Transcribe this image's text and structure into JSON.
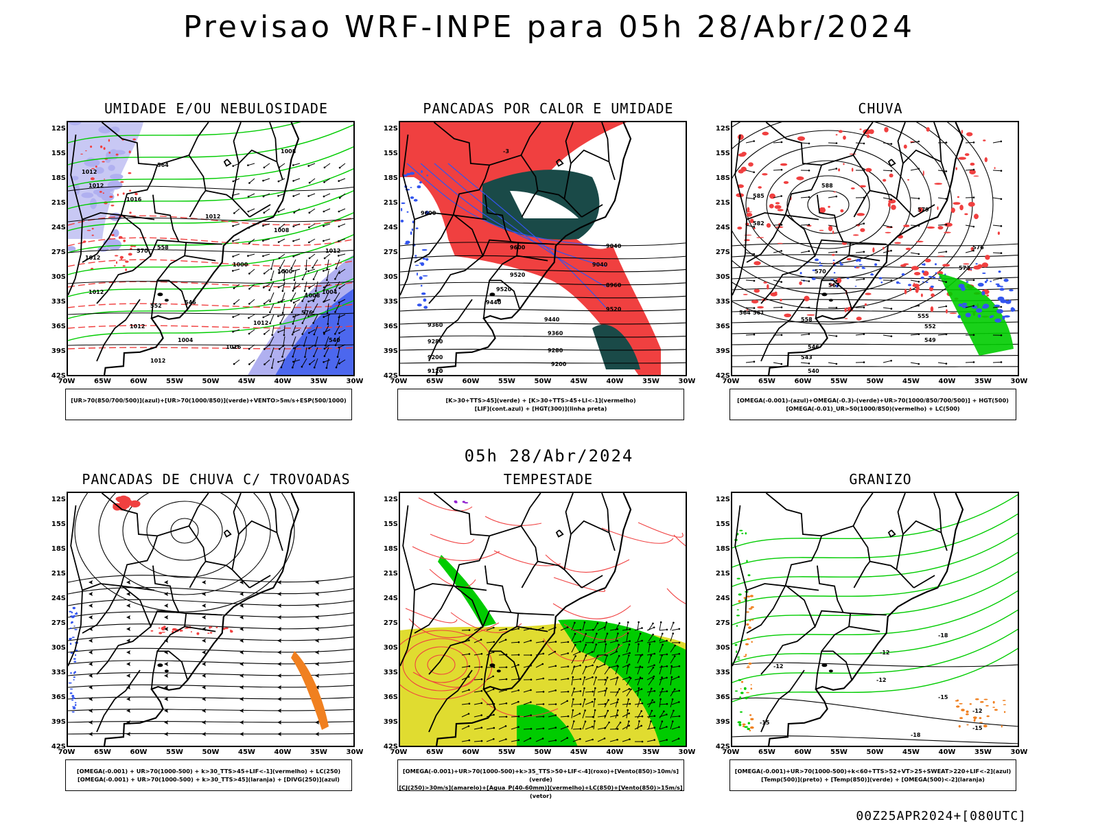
{
  "header": {
    "title": "Previsao WRF-INPE  para 05h 28/Abr/2024",
    "mid_time": "05h 28/Abr/2024",
    "footer": "00Z25APR2024+[080UTC]"
  },
  "axes": {
    "lat_labels": [
      "12S",
      "15S",
      "18S",
      "21S",
      "24S",
      "27S",
      "30S",
      "33S",
      "36S",
      "39S",
      "42S"
    ],
    "lon_labels": [
      "70W",
      "65W",
      "60W",
      "55W",
      "50W",
      "45W",
      "40W",
      "35W",
      "30W"
    ]
  },
  "panels": [
    {
      "id": "umidade",
      "title": "UMIDADE E/OU NEBULOSIDADE",
      "legend_lines": [
        "[UR>70(850/700/500)](azul)+[UR>70(1000/850)](verde)+VENTO>5m/s+ESP(500/1000)"
      ],
      "labels": [
        "1012",
        "1012",
        "1016",
        "1012",
        "1008",
        "1012",
        "1012",
        "1012",
        "1016",
        "1012",
        "1004",
        "1012",
        "1000",
        "1008",
        "1004",
        "1012",
        "1008",
        "1000",
        "576",
        "570",
        "564",
        "558",
        "552",
        "546",
        "540"
      ]
    },
    {
      "id": "pancadas-calor",
      "title": "PANCADAS POR CALOR E UMIDADE",
      "legend_lines": [
        "[K>30+TTS>45](verde) + [K>30+TTS>45+LI<-1](vermelho)",
        "[LIF](cont.azul) + [HGT(300)](linha preta)"
      ],
      "labels": [
        "9600",
        "9600",
        "9520",
        "9520",
        "9440",
        "9360",
        "9280",
        "9200",
        "9120",
        "9040",
        "8960",
        "9520",
        "9440",
        "9360",
        "9280",
        "9200",
        "9120",
        "9040",
        "-3"
      ]
    },
    {
      "id": "chuva",
      "title": "CHUVA",
      "legend_lines": [
        "[OMEGA(-0.001)-(azul)+OMEGA(-0.3)-(verde)+UR>70(1000/850/700/500)] + HGT(500)",
        "[OMEGA(-0.01)_UR>50(1000/850)(vermelho) + LC(500)"
      ],
      "labels": [
        "588",
        "585",
        "582",
        "579",
        "576",
        "573",
        "570",
        "567",
        "564",
        "561",
        "558",
        "555",
        "552",
        "549",
        "546",
        "543",
        "540"
      ]
    },
    {
      "id": "trovoadas",
      "title": "PANCADAS DE CHUVA C/ TROVOADAS",
      "legend_lines": [
        "[OMEGA(-0.001) + UR>70(1000-500) + k>30_TTS>45+LIF<-1](vermelho) + LC(250)",
        "[OMEGA(-0.001) + UR>70(1000-500) + k>30_TTS>45](laranja) + [DIVG(250)](azul)"
      ],
      "labels": []
    },
    {
      "id": "tempestade",
      "title": "TEMPESTADE",
      "legend_lines": [
        "[OMEGA(-0.001)+UR>70(1000-500)+k>35_TTS>50+LIF<-4](roxo)+[Vento(850)>10m/s](verde)",
        "[CJ(250)>30m/s](amarelo)+[Agua_P(40-60mm)](vermelho)+LC(850)+[Vento(850)>15m/s](vetor)"
      ],
      "labels": []
    },
    {
      "id": "granizo",
      "title": "GRANIZO",
      "legend_lines": [
        "[OMEGA(-0.001)+UR>70(1000-500)+k<60+TTS>52+VT>25+SWEAT>220+LIF<-2](azul)",
        "[Temp(500)](preto) + [Temp(850)](verde) + [OMEGA(500)<-2](laranja)"
      ],
      "labels": [
        "-12",
        "-12",
        "-12",
        "-15",
        "-15",
        "-18",
        "-12",
        "-18",
        "-15"
      ]
    }
  ],
  "colors": {
    "red": "#f04040",
    "green": "#00cc00",
    "blue": "#3355ee",
    "lavender": "#b0b0f0",
    "darkgreen": "#1a4a48",
    "yellow": "#e0dc30",
    "orange": "#f08020",
    "purple": "#9020d0"
  }
}
